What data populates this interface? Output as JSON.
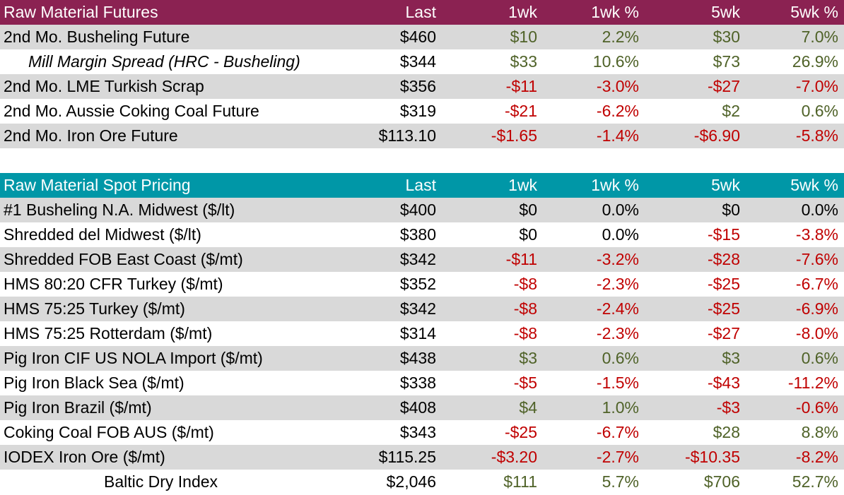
{
  "futures": {
    "header": {
      "name": "Raw Material Futures",
      "last": "Last",
      "w1": "1wk",
      "w1p": "1wk %",
      "w5": "5wk",
      "w5p": "5wk %"
    },
    "rows": [
      {
        "name": "2nd Mo. Busheling Future",
        "last": "$460",
        "w1": "$10",
        "w1p": "2.2%",
        "w5": "$30",
        "w5p": "7.0%"
      },
      {
        "name": "Mill Margin Spread (HRC - Busheling)",
        "last": "$344",
        "w1": "$33",
        "w1p": "10.6%",
        "w5": "$73",
        "w5p": "26.9%"
      },
      {
        "name": "2nd Mo. LME Turkish Scrap",
        "last": "$356",
        "w1": "-$11",
        "w1p": "-3.0%",
        "w5": "-$27",
        "w5p": "-7.0%"
      },
      {
        "name": "2nd Mo. Aussie Coking Coal Future",
        "last": "$319",
        "w1": "-$21",
        "w1p": "-6.2%",
        "w5": "$2",
        "w5p": "0.6%"
      },
      {
        "name": "2nd Mo. Iron Ore Future",
        "last": "$113.10",
        "w1": "-$1.65",
        "w1p": "-1.4%",
        "w5": "-$6.90",
        "w5p": "-5.8%"
      }
    ]
  },
  "spot": {
    "header": {
      "name": "Raw Material Spot Pricing",
      "last": "Last",
      "w1": "1wk",
      "w1p": "1wk %",
      "w5": "5wk",
      "w5p": "5wk %"
    },
    "rows": [
      {
        "name": "#1 Busheling N.A. Midwest ($/lt)",
        "last": "$400",
        "w1": "$0",
        "w1p": "0.0%",
        "w5": "$0",
        "w5p": "0.0%"
      },
      {
        "name": "Shredded del  Midwest ($/lt)",
        "last": "$380",
        "w1": "$0",
        "w1p": "0.0%",
        "w5": "-$15",
        "w5p": "-3.8%"
      },
      {
        "name": "Shredded FOB East Coast ($/mt)",
        "last": "$342",
        "w1": "-$11",
        "w1p": "-3.2%",
        "w5": "-$28",
        "w5p": "-7.6%"
      },
      {
        "name": "HMS 80:20 CFR Turkey ($/mt)",
        "last": "$352",
        "w1": "-$8",
        "w1p": "-2.3%",
        "w5": "-$25",
        "w5p": "-6.7%"
      },
      {
        "name": "HMS 75:25 Turkey ($/mt)",
        "last": "$342",
        "w1": "-$8",
        "w1p": "-2.4%",
        "w5": "-$25",
        "w5p": "-6.9%"
      },
      {
        "name": "HMS 75:25 Rotterdam ($/mt)",
        "last": "$314",
        "w1": "-$8",
        "w1p": "-2.3%",
        "w5": "-$27",
        "w5p": "-8.0%"
      },
      {
        "name": "Pig Iron CIF US NOLA Import ($/mt)",
        "last": "$438",
        "w1": "$3",
        "w1p": "0.6%",
        "w5": "$3",
        "w5p": "0.6%"
      },
      {
        "name": "Pig Iron Black Sea ($/mt)",
        "last": "$338",
        "w1": "-$5",
        "w1p": "-1.5%",
        "w5": "-$43",
        "w5p": "-11.2%"
      },
      {
        "name": "Pig Iron Brazil ($/mt)",
        "last": "$408",
        "w1": "$4",
        "w1p": "1.0%",
        "w5": "-$3",
        "w5p": "-0.6%"
      },
      {
        "name": "Coking Coal FOB AUS ($/mt)",
        "last": "$343",
        "w1": "-$25",
        "w1p": "-6.7%",
        "w5": "$28",
        "w5p": "8.8%"
      },
      {
        "name": "IODEX  Iron Ore ($/mt)",
        "last": "$115.25",
        "w1": "-$3.20",
        "w1p": "-2.7%",
        "w5": "-$10.35",
        "w5p": "-8.2%"
      },
      {
        "name": "Baltic Dry Index",
        "last": "$2,046",
        "w1": "$111",
        "w1p": "5.7%",
        "w5": "$706",
        "w5p": "52.7%"
      }
    ]
  },
  "colors": {
    "futures_header": "#8b2252",
    "spot_header": "#0097a7",
    "positive": "#4f6228",
    "negative": "#c00000",
    "shade": "#d9d9d9"
  }
}
